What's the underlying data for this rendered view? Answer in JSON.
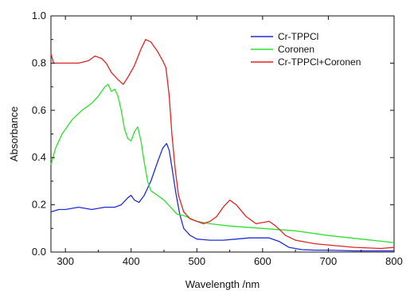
{
  "chart_data": {
    "type": "line",
    "title": "",
    "xlabel": "Wavelength /nm",
    "ylabel": "Absorbance",
    "xlim": [
      278,
      800
    ],
    "ylim": [
      0,
      1.0
    ],
    "xticks": [
      300,
      400,
      500,
      600,
      700,
      800
    ],
    "yticks": [
      0.0,
      0.2,
      0.4,
      0.6,
      0.8,
      1.0
    ],
    "ytick_labels": [
      "0.0",
      "0.2",
      "0.4",
      "0.6",
      "0.8",
      "1.0"
    ],
    "grid": false,
    "legend_position": "top-right",
    "series": [
      {
        "name": "Cr-TPPCl",
        "color": "#1f2fd6",
        "points": [
          [
            278,
            0.17
          ],
          [
            290,
            0.18
          ],
          [
            300,
            0.18
          ],
          [
            320,
            0.19
          ],
          [
            340,
            0.18
          ],
          [
            360,
            0.19
          ],
          [
            375,
            0.19
          ],
          [
            385,
            0.2
          ],
          [
            395,
            0.23
          ],
          [
            400,
            0.24
          ],
          [
            405,
            0.22
          ],
          [
            412,
            0.21
          ],
          [
            420,
            0.24
          ],
          [
            430,
            0.3
          ],
          [
            440,
            0.38
          ],
          [
            448,
            0.44
          ],
          [
            454,
            0.46
          ],
          [
            458,
            0.43
          ],
          [
            462,
            0.36
          ],
          [
            468,
            0.25
          ],
          [
            474,
            0.16
          ],
          [
            480,
            0.1
          ],
          [
            490,
            0.07
          ],
          [
            500,
            0.055
          ],
          [
            520,
            0.05
          ],
          [
            540,
            0.05
          ],
          [
            560,
            0.055
          ],
          [
            580,
            0.06
          ],
          [
            600,
            0.06
          ],
          [
            610,
            0.06
          ],
          [
            625,
            0.045
          ],
          [
            640,
            0.02
          ],
          [
            660,
            0.01
          ],
          [
            680,
            0.008
          ],
          [
            700,
            0.008
          ],
          [
            740,
            0.005
          ],
          [
            800,
            0.005
          ]
        ]
      },
      {
        "name": "Coronen",
        "color": "#2ee02e",
        "points": [
          [
            278,
            0.37
          ],
          [
            285,
            0.44
          ],
          [
            295,
            0.5
          ],
          [
            310,
            0.56
          ],
          [
            325,
            0.6
          ],
          [
            340,
            0.63
          ],
          [
            350,
            0.66
          ],
          [
            360,
            0.7
          ],
          [
            365,
            0.71
          ],
          [
            370,
            0.68
          ],
          [
            375,
            0.69
          ],
          [
            380,
            0.66
          ],
          [
            385,
            0.6
          ],
          [
            390,
            0.52
          ],
          [
            395,
            0.48
          ],
          [
            400,
            0.47
          ],
          [
            405,
            0.51
          ],
          [
            410,
            0.53
          ],
          [
            415,
            0.47
          ],
          [
            420,
            0.38
          ],
          [
            425,
            0.3
          ],
          [
            430,
            0.26
          ],
          [
            435,
            0.25
          ],
          [
            440,
            0.24
          ],
          [
            450,
            0.22
          ],
          [
            460,
            0.19
          ],
          [
            470,
            0.16
          ],
          [
            480,
            0.155
          ],
          [
            500,
            0.13
          ],
          [
            520,
            0.12
          ],
          [
            550,
            0.11
          ],
          [
            600,
            0.1
          ],
          [
            650,
            0.09
          ],
          [
            700,
            0.07
          ],
          [
            750,
            0.055
          ],
          [
            800,
            0.04
          ]
        ]
      },
      {
        "name": "Cr-TPPCl+Coronen",
        "color": "#e02424",
        "points": [
          [
            278,
            0.84
          ],
          [
            282,
            0.8
          ],
          [
            300,
            0.8
          ],
          [
            320,
            0.8
          ],
          [
            335,
            0.81
          ],
          [
            345,
            0.83
          ],
          [
            355,
            0.82
          ],
          [
            362,
            0.8
          ],
          [
            370,
            0.76
          ],
          [
            380,
            0.73
          ],
          [
            388,
            0.71
          ],
          [
            395,
            0.74
          ],
          [
            405,
            0.79
          ],
          [
            415,
            0.86
          ],
          [
            422,
            0.9
          ],
          [
            430,
            0.89
          ],
          [
            440,
            0.85
          ],
          [
            448,
            0.81
          ],
          [
            453,
            0.78
          ],
          [
            458,
            0.66
          ],
          [
            462,
            0.5
          ],
          [
            467,
            0.35
          ],
          [
            472,
            0.24
          ],
          [
            480,
            0.17
          ],
          [
            490,
            0.14
          ],
          [
            500,
            0.13
          ],
          [
            510,
            0.12
          ],
          [
            520,
            0.13
          ],
          [
            530,
            0.15
          ],
          [
            540,
            0.19
          ],
          [
            550,
            0.22
          ],
          [
            560,
            0.2
          ],
          [
            575,
            0.15
          ],
          [
            590,
            0.12
          ],
          [
            610,
            0.13
          ],
          [
            620,
            0.11
          ],
          [
            635,
            0.07
          ],
          [
            650,
            0.05
          ],
          [
            680,
            0.035
          ],
          [
            700,
            0.03
          ],
          [
            740,
            0.02
          ],
          [
            780,
            0.015
          ],
          [
            800,
            0.02
          ]
        ]
      }
    ]
  }
}
